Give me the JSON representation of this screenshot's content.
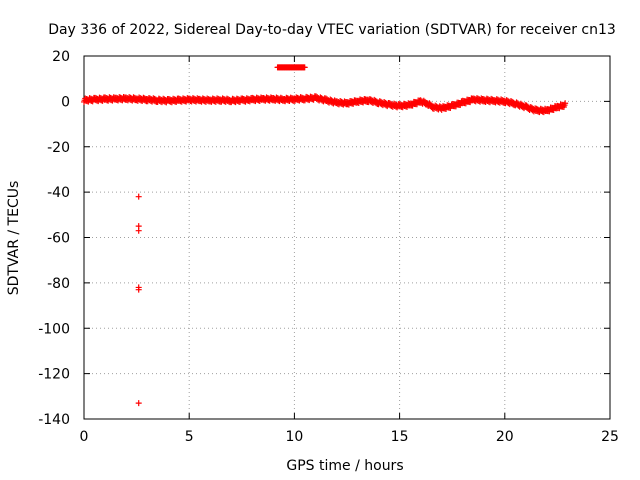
{
  "chart_data": {
    "type": "scatter",
    "title": "Day 336 of 2022, Sidereal Day-to-day VTEC variation (SDTVAR) for receiver cn13",
    "xlabel": "GPS time / hours",
    "ylabel": "SDTVAR / TECUs",
    "xlim": [
      0,
      25
    ],
    "ylim": [
      -140,
      20
    ],
    "xticks": [
      0,
      5,
      10,
      15,
      20,
      25
    ],
    "yticks": [
      20,
      0,
      -20,
      -40,
      -60,
      -80,
      -100,
      -120,
      -140
    ],
    "grid": true,
    "marker": "+",
    "series": [
      {
        "name": "SDTVAR",
        "color": "#ff0000",
        "curve": [
          [
            0.0,
            0.5
          ],
          [
            0.5,
            0.8
          ],
          [
            1.0,
            1.0
          ],
          [
            1.5,
            1.1
          ],
          [
            2.0,
            1.2
          ],
          [
            2.5,
            1.0
          ],
          [
            3.0,
            0.8
          ],
          [
            3.5,
            0.5
          ],
          [
            4.0,
            0.3
          ],
          [
            4.5,
            0.5
          ],
          [
            5.0,
            0.7
          ],
          [
            5.5,
            0.6
          ],
          [
            6.0,
            0.5
          ],
          [
            6.5,
            0.6
          ],
          [
            7.0,
            0.4
          ],
          [
            7.5,
            0.5
          ],
          [
            8.0,
            0.8
          ],
          [
            8.5,
            1.0
          ],
          [
            9.0,
            1.0
          ],
          [
            9.5,
            0.8
          ],
          [
            10.0,
            1.0
          ],
          [
            10.5,
            1.2
          ],
          [
            11.0,
            1.5
          ],
          [
            11.5,
            0.5
          ],
          [
            12.0,
            -0.5
          ],
          [
            12.5,
            -0.8
          ],
          [
            13.0,
            0.0
          ],
          [
            13.5,
            0.5
          ],
          [
            14.0,
            -0.5
          ],
          [
            14.5,
            -1.5
          ],
          [
            15.0,
            -2.0
          ],
          [
            15.5,
            -1.5
          ],
          [
            16.0,
            0.0
          ],
          [
            16.3,
            -1.0
          ],
          [
            16.6,
            -2.5
          ],
          [
            17.0,
            -3.0
          ],
          [
            17.5,
            -2.0
          ],
          [
            18.0,
            -0.5
          ],
          [
            18.5,
            0.8
          ],
          [
            19.0,
            0.5
          ],
          [
            19.5,
            0.3
          ],
          [
            20.0,
            0.0
          ],
          [
            20.5,
            -1.0
          ],
          [
            21.0,
            -2.5
          ],
          [
            21.5,
            -4.0
          ],
          [
            22.0,
            -4.0
          ],
          [
            22.5,
            -2.5
          ],
          [
            22.9,
            -1.5
          ]
        ],
        "plateau": {
          "x_start": 9.2,
          "x_end": 10.5,
          "y": 15
        },
        "outliers": [
          [
            2.6,
            -42
          ],
          [
            2.6,
            -55
          ],
          [
            2.6,
            -57
          ],
          [
            2.6,
            -82
          ],
          [
            2.6,
            -83
          ],
          [
            2.6,
            -133
          ]
        ]
      }
    ]
  }
}
